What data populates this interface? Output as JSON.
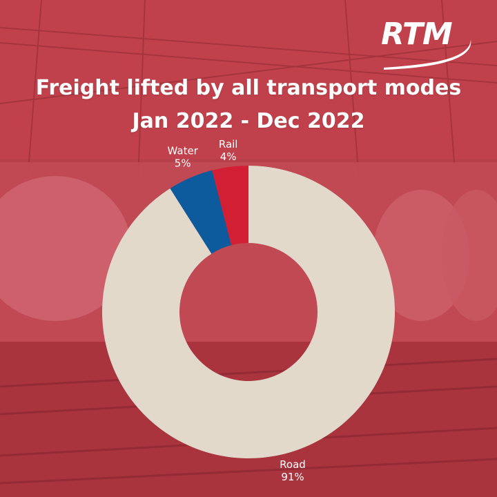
{
  "brand": {
    "logo_text": "RTM"
  },
  "header": {
    "title_line1": "Freight lifted by all transport modes",
    "title_line2": "Jan 2022 - Dec 2022"
  },
  "colors": {
    "background": "#b73a45",
    "road": "#e2d9cb",
    "water": "#0d5a9c",
    "rail": "#d21f33"
  },
  "chart_data": {
    "type": "pie",
    "variant": "donut",
    "title": "Freight lifted by all transport modes Jan 2022 - Dec 2022",
    "categories": [
      "Road",
      "Water",
      "Rail"
    ],
    "values": [
      91,
      5,
      4
    ],
    "value_labels": [
      "91%",
      "5%",
      "4%"
    ],
    "start_angle_deg": 0,
    "direction": "clockwise",
    "legend": "none",
    "data_labels": "outside"
  }
}
